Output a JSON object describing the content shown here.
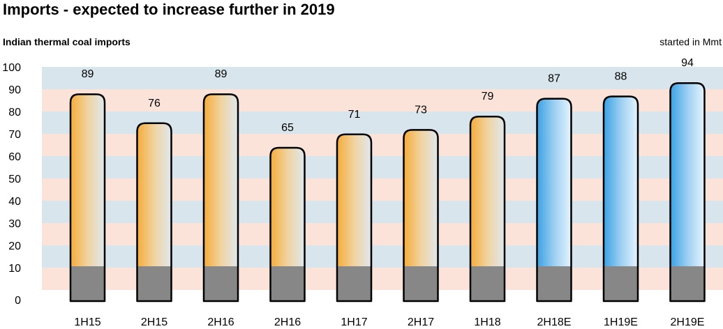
{
  "chart_data": {
    "type": "bar",
    "title": "Imports - expected to increase further in 2019",
    "subtitle": "Indian thermal coal imports",
    "unit": "started in Mmt",
    "categories": [
      "1H15",
      "2H15",
      "2H16",
      "2H16",
      "1H17",
      "2H17",
      "1H18",
      "2H18E",
      "1H19E",
      "2H19E"
    ],
    "values": [
      89,
      76,
      89,
      65,
      71,
      73,
      79,
      87,
      88,
      94
    ],
    "estimate": [
      false,
      false,
      false,
      false,
      false,
      false,
      false,
      true,
      true,
      true
    ],
    "ylim": [
      0,
      100
    ],
    "yticks": [
      0,
      10,
      20,
      30,
      40,
      50,
      60,
      70,
      80,
      90,
      100
    ],
    "ytick_labels": [
      "0",
      "10",
      "20",
      "30",
      "40",
      "50",
      "60",
      "70",
      "80",
      "90",
      "100"
    ],
    "grid": true,
    "colors": {
      "actual_gradient": [
        "#f6ac3a",
        "#f0d3a0",
        "#dfe8ee"
      ],
      "estimate_gradient": [
        "#3ba1e3",
        "#9ccff2",
        "#e6f4fc"
      ],
      "bar_base": "#878787",
      "band_blue": "#d8e5ec",
      "band_pink": "#fbe3da",
      "bar_outline": "#000000"
    }
  }
}
